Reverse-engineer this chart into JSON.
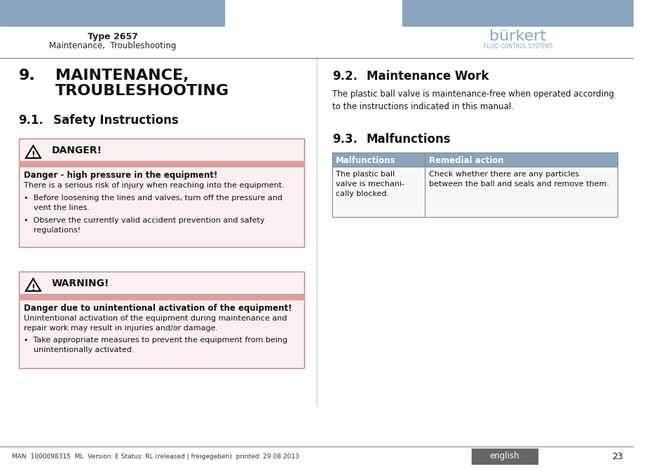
{
  "page_bg": "#ffffff",
  "header_bar_color": "#8aa4be",
  "header_left_title": "Type 2657",
  "header_left_subtitle": "Maintenance,  Troubleshooting",
  "danger_label": "DANGER!",
  "danger_bar_color": "#d9a0a0",
  "danger_title": "Danger - high pressure in the equipment!",
  "danger_text1": "There is a serious risk of injury when reaching into the equipment.",
  "danger_bullet1": "•  Before loosening the lines and valves, turn off the pressure and\n    vent the lines.",
  "danger_bullet2": "•  Observe the currently valid accident prevention and safety\n    regulations!",
  "warning_label": "WARNING!",
  "warning_bar_color": "#d9a0a0",
  "warning_title": "Danger due to unintentional activation of the equipment!",
  "warning_text1": "Unintentional activation of the equipment during maintenance and\nrepair work may result in injuries and/or damage.",
  "warning_bullet1": "•  Take appropriate measures to prevent the equipment from being\n    unintentionally activated.",
  "maint_text": "The plastic ball valve is maintenance-free when operated according\nto the instructions indicated in this manual.",
  "table_header1": "Malfunctions",
  "table_header2": "Remedial action",
  "table_col1": "The plastic ball\nvalve is mechani-\ncally blocked.",
  "table_col2": "Check whether there are any particles\nbetween the ball and seals and remove them.",
  "table_header_bg": "#8aa4be",
  "footer_text": "MAN  1000098315  ML  Version: E Status: RL (released | freigegeben)  printed: 29.08.2013",
  "footer_english_bg": "#666666",
  "footer_english_text": "english",
  "footer_page": "23",
  "divider_color": "#888888",
  "box_border_color": "#c08080",
  "box_bg_color": "#faf0f0"
}
